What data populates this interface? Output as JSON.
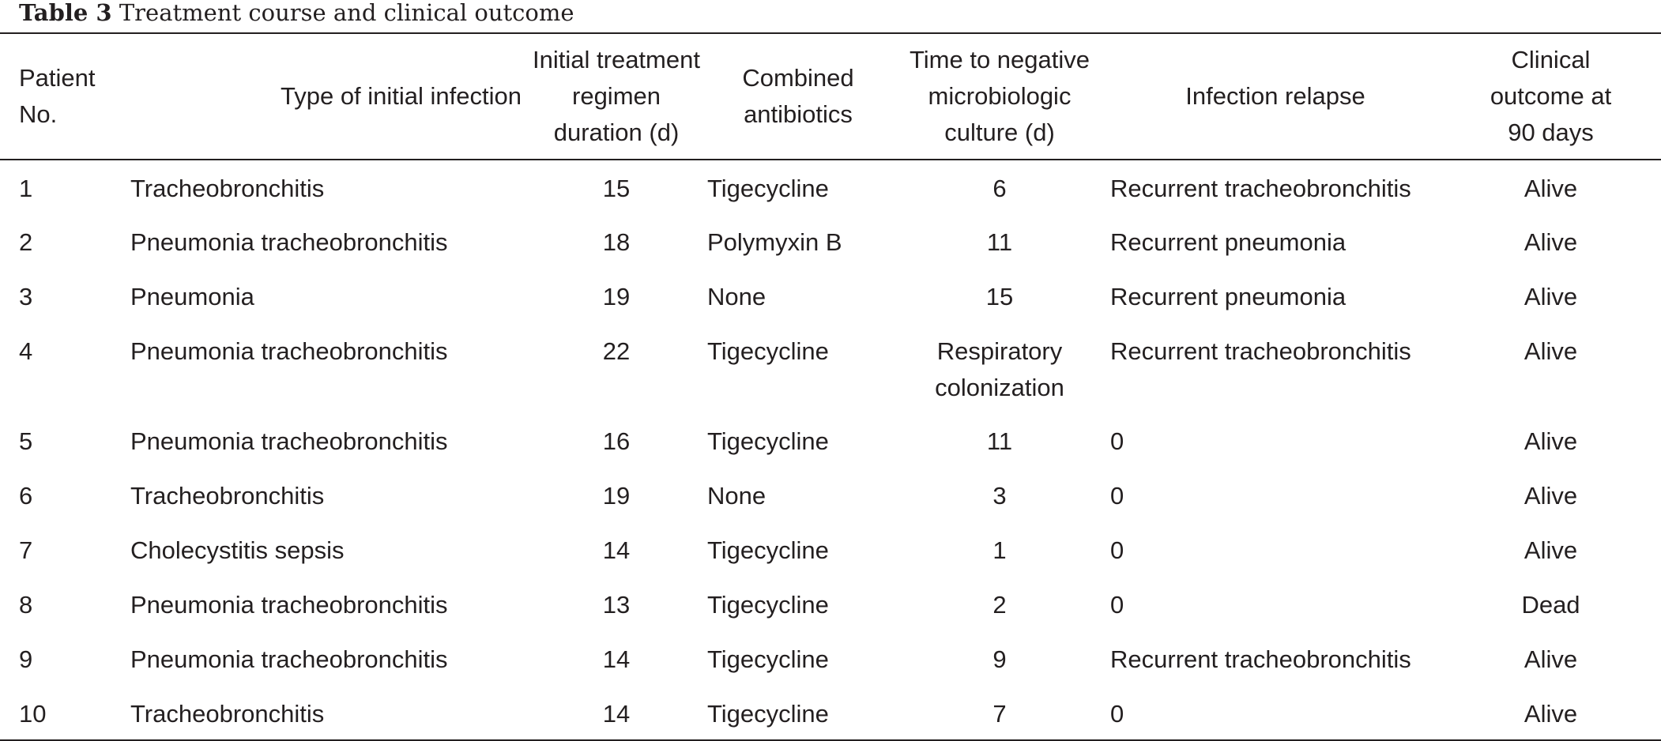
{
  "caption": {
    "label": "Table 3",
    "title": "Treatment course and clinical outcome"
  },
  "table": {
    "headers": {
      "patient": [
        "Patient",
        "No."
      ],
      "type": [
        "Type of initial infection"
      ],
      "duration": [
        "Initial treatment",
        "regimen",
        "duration (d)"
      ],
      "combined": [
        "Combined",
        "antibiotics"
      ],
      "time": [
        "Time to negative",
        "microbiologic",
        "culture (d)"
      ],
      "relapse": [
        "Infection relapse"
      ],
      "outcome": [
        "Clinical",
        "outcome at",
        "90 days"
      ]
    },
    "rows": [
      {
        "patient": "1",
        "type": "Tracheobronchitis",
        "duration": "15",
        "combined": "Tigecycline",
        "time": [
          "6"
        ],
        "relapse": "Recurrent tracheobronchitis",
        "outcome": "Alive"
      },
      {
        "patient": "2",
        "type": "Pneumonia tracheobronchitis",
        "duration": "18",
        "combined": "Polymyxin B",
        "time": [
          "11"
        ],
        "relapse": "Recurrent pneumonia",
        "outcome": "Alive"
      },
      {
        "patient": "3",
        "type": "Pneumonia",
        "duration": "19",
        "combined": "None",
        "time": [
          "15"
        ],
        "relapse": "Recurrent pneumonia",
        "outcome": "Alive"
      },
      {
        "patient": "4",
        "type": "Pneumonia tracheobronchitis",
        "duration": "22",
        "combined": "Tigecycline",
        "time": [
          "Respiratory",
          "colonization"
        ],
        "relapse": "Recurrent tracheobronchitis",
        "outcome": "Alive"
      },
      {
        "patient": "5",
        "type": "Pneumonia tracheobronchitis",
        "duration": "16",
        "combined": "Tigecycline",
        "time": [
          "11"
        ],
        "relapse": "0",
        "outcome": "Alive"
      },
      {
        "patient": "6",
        "type": "Tracheobronchitis",
        "duration": "19",
        "combined": "None",
        "time": [
          "3"
        ],
        "relapse": "0",
        "outcome": "Alive"
      },
      {
        "patient": "7",
        "type": "Cholecystitis sepsis",
        "duration": "14",
        "combined": "Tigecycline",
        "time": [
          "1"
        ],
        "relapse": "0",
        "outcome": "Alive"
      },
      {
        "patient": "8",
        "type": "Pneumonia tracheobronchitis",
        "duration": "13",
        "combined": "Tigecycline",
        "time": [
          "2"
        ],
        "relapse": "0",
        "outcome": "Dead"
      },
      {
        "patient": "9",
        "type": "Pneumonia tracheobronchitis",
        "duration": "14",
        "combined": "Tigecycline",
        "time": [
          "9"
        ],
        "relapse": "Recurrent tracheobronchitis",
        "outcome": "Alive"
      },
      {
        "patient": "10",
        "type": "Tracheobronchitis",
        "duration": "14",
        "combined": "Tigecycline",
        "time": [
          "7"
        ],
        "relapse": "0",
        "outcome": "Alive"
      }
    ]
  }
}
